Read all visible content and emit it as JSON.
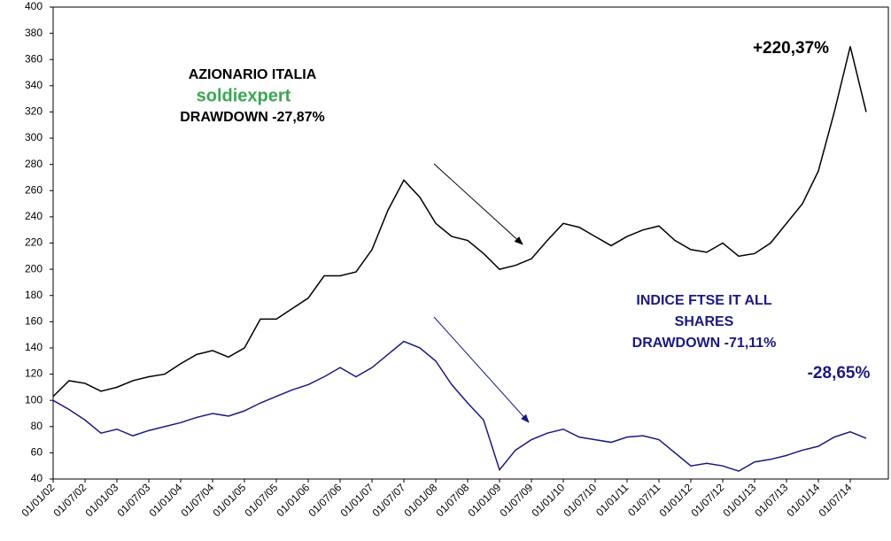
{
  "chart_data": {
    "type": "line",
    "x": [
      "01/01/02",
      "01/04/02",
      "01/07/02",
      "01/10/02",
      "01/01/03",
      "01/04/03",
      "01/07/03",
      "01/10/03",
      "01/01/04",
      "01/04/04",
      "01/07/04",
      "01/10/04",
      "01/01/05",
      "01/04/05",
      "01/07/05",
      "01/10/05",
      "01/01/06",
      "01/04/06",
      "01/07/06",
      "01/10/06",
      "01/01/07",
      "01/04/07",
      "01/07/07",
      "01/10/07",
      "01/01/08",
      "01/04/08",
      "01/07/08",
      "01/10/08",
      "01/01/09",
      "01/04/09",
      "01/07/09",
      "01/10/09",
      "01/01/10",
      "01/04/10",
      "01/07/10",
      "01/10/10",
      "01/01/11",
      "01/04/11",
      "01/07/11",
      "01/10/11",
      "01/01/12",
      "01/04/12",
      "01/07/12",
      "01/10/12",
      "01/01/13",
      "01/04/13",
      "01/07/13",
      "01/10/13",
      "01/01/14",
      "01/04/14",
      "01/07/14",
      "01/10/14"
    ],
    "series": [
      {
        "color": "#000000",
        "values": [
          103,
          115,
          113,
          107,
          110,
          115,
          118,
          120,
          128,
          135,
          138,
          133,
          140,
          162,
          162,
          170,
          178,
          195,
          195,
          198,
          215,
          245,
          268,
          255,
          235,
          225,
          222,
          212,
          200,
          203,
          208,
          222,
          235,
          232,
          225,
          218,
          225,
          230,
          233,
          222,
          215,
          213,
          220,
          210,
          212,
          220,
          235,
          250,
          275,
          320,
          370,
          320
        ]
      },
      {
        "color": "#1a1a80",
        "values": [
          100,
          93,
          85,
          75,
          78,
          73,
          77,
          80,
          83,
          87,
          90,
          88,
          92,
          98,
          103,
          108,
          112,
          118,
          125,
          118,
          125,
          135,
          145,
          140,
          130,
          112,
          98,
          85,
          47,
          62,
          70,
          75,
          78,
          72,
          70,
          68,
          72,
          73,
          70,
          60,
          50,
          52,
          50,
          46,
          53,
          55,
          58,
          62,
          65,
          72,
          76,
          71
        ]
      }
    ],
    "xticks": [
      "01/01/02",
      "01/07/02",
      "01/01/03",
      "01/07/03",
      "01/01/04",
      "01/07/04",
      "01/01/05",
      "01/07/05",
      "01/01/06",
      "01/07/06",
      "01/01/07",
      "01/07/07",
      "01/01/08",
      "01/07/08",
      "01/01/09",
      "01/07/09",
      "01/01/10",
      "01/07/10",
      "01/01/11",
      "01/07/11",
      "01/01/12",
      "01/07/12",
      "01/01/13",
      "01/07/13",
      "01/01/14",
      "01/07/14"
    ],
    "ylim": [
      40,
      400
    ],
    "yticks": [
      40,
      60,
      80,
      100,
      120,
      140,
      160,
      180,
      200,
      220,
      240,
      260,
      280,
      300,
      320,
      340,
      360,
      380,
      400
    ],
    "annotations": [
      "AZIONARIO ITALIA",
      "soldiexpert",
      "DRAWDOWN -27,87%",
      "+220,37%",
      "INDICE FTSE IT ALL",
      "SHARES",
      "DRAWDOWN -71,11%",
      "-28,65%"
    ]
  }
}
